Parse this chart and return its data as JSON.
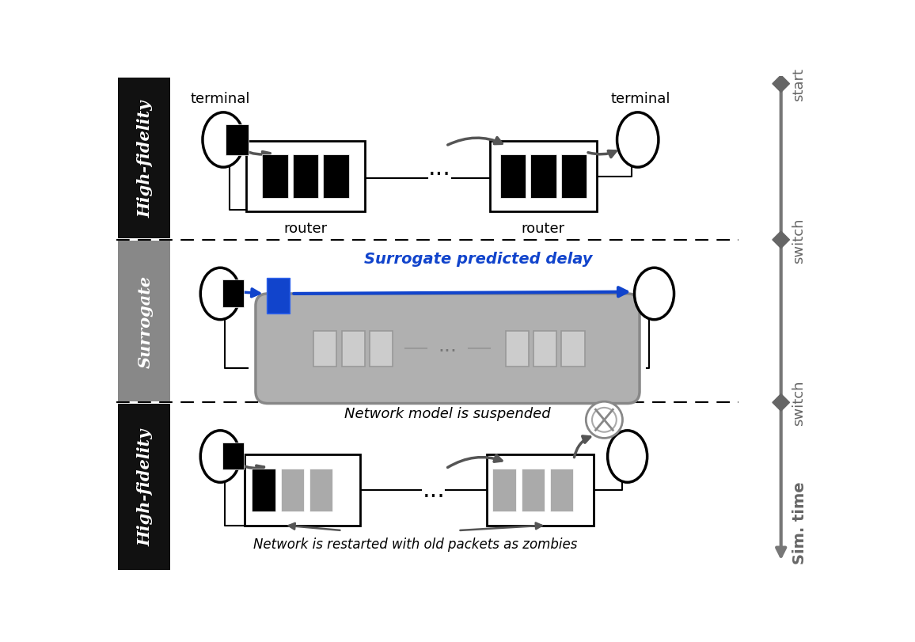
{
  "section_labels": [
    "High-fidelity",
    "Surrogate",
    "High-fidelity"
  ],
  "section_bg_colors": [
    "#111111",
    "#888888",
    "#111111"
  ],
  "blue_color": "#1144cc",
  "surrogate_delay_label": "Surrogate predicted delay",
  "suspended_label": "Network model is suspended",
  "zombie_label": "Network is restarted with old packets as zombies",
  "dark_gray": "#555555",
  "timeline_color": "#666666",
  "router_label": "router"
}
